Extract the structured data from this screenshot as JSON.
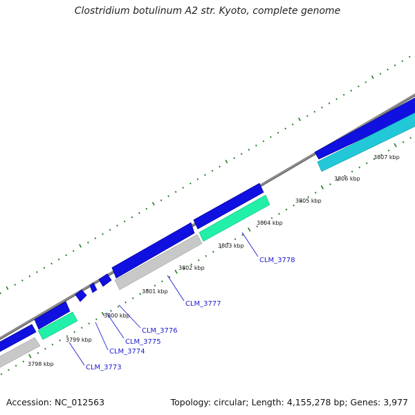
{
  "title": "Clostridium botulinum A2 str. Kyoto, complete genome",
  "footer": {
    "accession": "Accession: NC_012563",
    "info": "Topology: circular; Length: 4,155,278 bp; Genes: 3,977"
  },
  "colors": {
    "backbone": "#7f7f7f",
    "cds_forward": "#1010e0",
    "cds_forward_dark": "#0a0aa0",
    "cog_green": "#22f0a8",
    "cog_cyan": "#22c8d8",
    "cog_gray": "#c8c8c8",
    "tick": "#1f7a1f",
    "gene_label": "#1a1acc"
  },
  "ticks": [
    {
      "kbp": 3798,
      "label": "3798 kbp"
    },
    {
      "kbp": 3799,
      "label": "3799 kbp"
    },
    {
      "kbp": 3800,
      "label": "3800 kbp"
    },
    {
      "kbp": 3801,
      "label": "3801 kbp"
    },
    {
      "kbp": 3802,
      "label": "3802 kbp"
    },
    {
      "kbp": 3803,
      "label": "3803 kbp"
    },
    {
      "kbp": 3804,
      "label": "3804 kbp"
    },
    {
      "kbp": 3805,
      "label": "3805 kbp"
    },
    {
      "kbp": 3806,
      "label": "3806 kbp"
    },
    {
      "kbp": 3807,
      "label": "3807 kbp"
    }
  ],
  "genes": [
    {
      "label": "CLM_3773"
    },
    {
      "label": "CLM_3774"
    },
    {
      "label": "CLM_3775"
    },
    {
      "label": "CLM_3776"
    },
    {
      "label": "CLM_3777"
    },
    {
      "label": "CLM_3778"
    }
  ]
}
